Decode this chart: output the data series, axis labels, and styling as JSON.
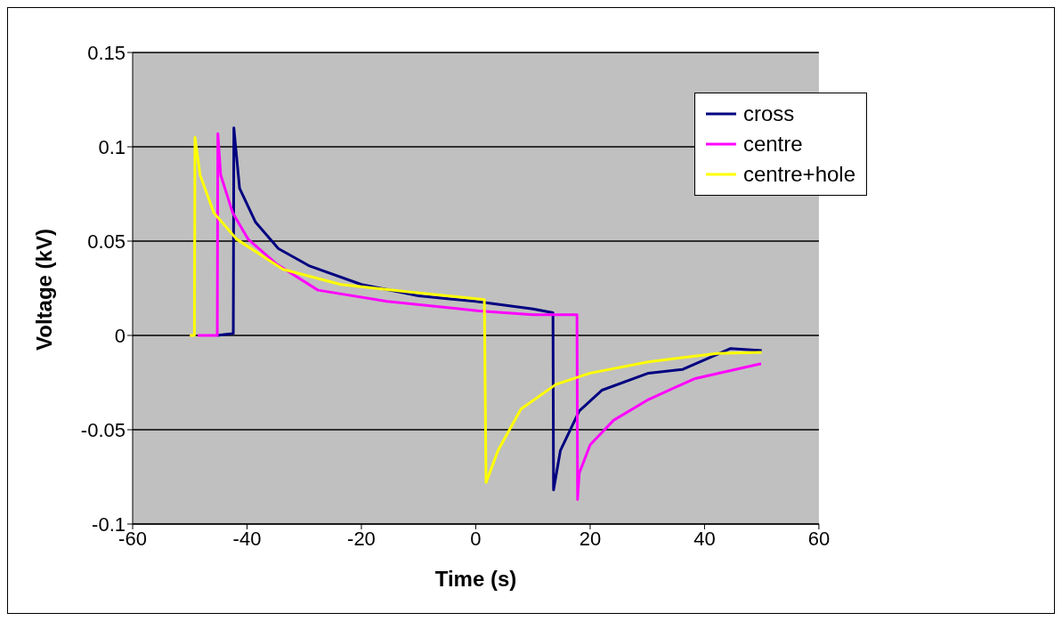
{
  "chart_data": {
    "type": "line",
    "xlabel": "Time (s)",
    "ylabel": "Voltage (kV)",
    "xlim": [
      -60,
      60
    ],
    "xticks": [
      -60,
      -40,
      -20,
      0,
      20,
      40,
      60
    ],
    "ylim": [
      -0.1,
      0.15
    ],
    "yticks": [
      -0.1,
      -0.05,
      0,
      0.05,
      0.1,
      0.15
    ],
    "grid": "y",
    "legend": "top right",
    "marker": "none",
    "line_style": "solid",
    "series": [
      {
        "name": "cross",
        "color": "#000080",
        "x": [
          -45.2,
          -42.4,
          -42.3,
          -41.3,
          -38.5,
          -34.5,
          -29.2,
          -20,
          -10,
          0,
          5,
          10,
          13.5,
          13.6,
          14.8,
          18.1,
          22.1,
          30.2,
          36.2,
          44.5,
          50
        ],
        "values": [
          0,
          0.001,
          0.11,
          0.078,
          0.06,
          0.046,
          0.037,
          0.027,
          0.021,
          0.018,
          0.016,
          0.014,
          0.012,
          -0.082,
          -0.061,
          -0.04,
          -0.029,
          -0.02,
          -0.018,
          -0.007,
          -0.008
        ]
      },
      {
        "name": "centre",
        "color": "#ff00ff",
        "x": [
          -48.6,
          -45.2,
          -45.1,
          -44.6,
          -42.5,
          -39.8,
          -34.9,
          -27.6,
          -15.5,
          0.6,
          10,
          17.7,
          17.8,
          18.1,
          20,
          24.1,
          30.2,
          38.2,
          49.9
        ],
        "values": [
          0,
          0,
          0.107,
          0.085,
          0.065,
          0.051,
          0.038,
          0.024,
          0.018,
          0.013,
          0.011,
          0.011,
          -0.087,
          -0.073,
          -0.058,
          -0.045,
          -0.034,
          -0.023,
          -0.015
        ]
      },
      {
        "name": "centre+hole",
        "color": "#ffff00",
        "x": [
          -50,
          -49.2,
          -49.1,
          -48.2,
          -45.8,
          -41.8,
          -33.7,
          -23.6,
          -11.5,
          1.5,
          1.8,
          3.9,
          7.9,
          14,
          20,
          30.2,
          42.3,
          50
        ],
        "values": [
          0,
          0,
          0.105,
          0.085,
          0.065,
          0.051,
          0.035,
          0.027,
          0.023,
          0.019,
          -0.078,
          -0.061,
          -0.039,
          -0.026,
          -0.02,
          -0.014,
          -0.0095,
          -0.009
        ]
      }
    ]
  }
}
